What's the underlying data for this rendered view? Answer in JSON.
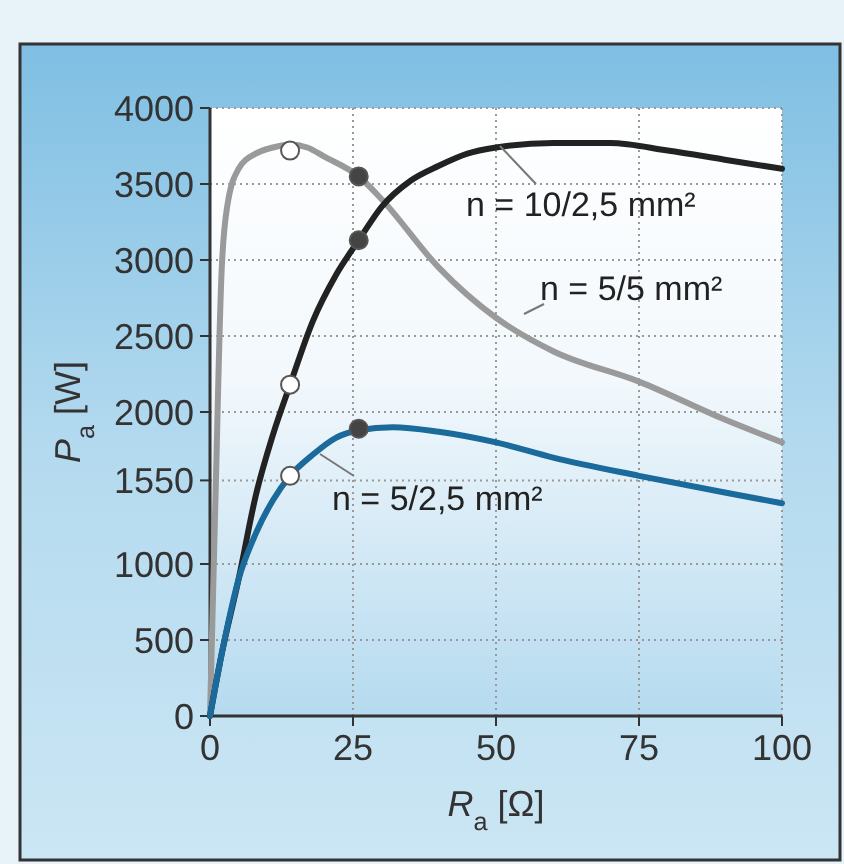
{
  "chart_data": {
    "type": "line",
    "xlabel": "R$_{a}$ [Ω]",
    "ylabel": "P$_{a}$ [W]",
    "xlim": [
      0,
      100
    ],
    "ylim": [
      0,
      4000
    ],
    "xticks": [
      0,
      25,
      50,
      75,
      100
    ],
    "yticks": [
      0,
      500,
      1000,
      1550,
      2000,
      2500,
      3000,
      3500,
      4000
    ],
    "grid": true,
    "line_style": "solid",
    "series": [
      {
        "name": "n = 5/5 mm²",
        "color": "#9a9a9a",
        "x": [
          0,
          1,
          2,
          3,
          5,
          8,
          11,
          14,
          17,
          20,
          26,
          30,
          40,
          50,
          60,
          75,
          90,
          100
        ],
        "values": [
          0,
          1500,
          2900,
          3350,
          3600,
          3700,
          3740,
          3760,
          3740,
          3680,
          3550,
          3400,
          2950,
          2620,
          2400,
          2200,
          1950,
          1800
        ]
      },
      {
        "name": "n = 10/2,5 mm²",
        "color": "#222222",
        "x": [
          0,
          2,
          5,
          8,
          11,
          14,
          18,
          22,
          26,
          30,
          35,
          40,
          45,
          50,
          60,
          70,
          80,
          90,
          100
        ],
        "values": [
          0,
          400,
          900,
          1450,
          1850,
          2180,
          2600,
          2900,
          3130,
          3350,
          3520,
          3620,
          3700,
          3740,
          3770,
          3770,
          3720,
          3660,
          3600
        ]
      },
      {
        "name": "n = 5/2,5 mm²",
        "color": "#1a6a9c",
        "x": [
          0,
          2,
          5,
          8,
          11,
          14,
          18,
          22,
          26,
          32,
          40,
          50,
          60,
          75,
          90,
          100
        ],
        "values": [
          0,
          400,
          900,
          1200,
          1420,
          1580,
          1720,
          1830,
          1880,
          1900,
          1870,
          1800,
          1700,
          1580,
          1470,
          1400
        ]
      },
      {
        "type": "scatter",
        "marker": "circle",
        "color": "#ffffff",
        "x": [
          14,
          14,
          14
        ],
        "values": [
          3720,
          2180,
          1580
        ]
      },
      {
        "type": "scatter",
        "marker": "circle",
        "color": "#444444",
        "x": [
          26,
          26,
          26
        ],
        "values": [
          3550,
          3130,
          1890
        ]
      }
    ]
  }
}
